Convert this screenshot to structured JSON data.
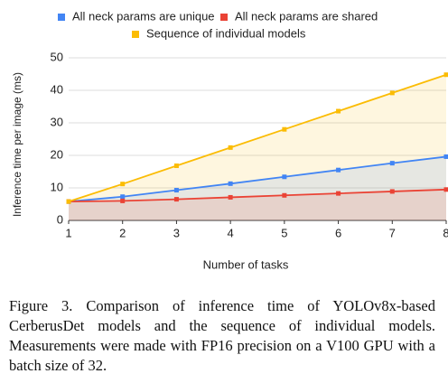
{
  "chart_data": {
    "type": "line",
    "area": true,
    "x_label": "Number of tasks",
    "y_label": "Inference time per image (ms)",
    "x": [
      1,
      2,
      3,
      4,
      5,
      6,
      7,
      8
    ],
    "series": [
      {
        "name": "All neck params are unique",
        "color": "#4285f4",
        "values": [
          5.8,
          7.3,
          9.3,
          11.3,
          13.4,
          15.5,
          17.6,
          19.6
        ]
      },
      {
        "name": "All neck params are shared",
        "color": "#ea4335",
        "values": [
          5.8,
          6.0,
          6.5,
          7.1,
          7.7,
          8.3,
          8.9,
          9.5
        ]
      },
      {
        "name": "Sequence of individual models",
        "color": "#fbbc04",
        "values": [
          5.8,
          11.2,
          16.8,
          22.4,
          28.0,
          33.6,
          39.2,
          44.8
        ]
      }
    ],
    "xlim": [
      1,
      8
    ],
    "xticks": [
      1,
      2,
      3,
      4,
      5,
      6,
      7,
      8
    ],
    "ylim": [
      0,
      50
    ],
    "yticks": [
      0,
      10,
      20,
      30,
      40,
      50
    ],
    "grid": true
  },
  "caption": "Figure 3. Comparison of inference time of YOLOv8x-based CerberusDet models and the sequence of individual models. Measurements were made with FP16 precision on a V100 GPU with a batch size of 32."
}
